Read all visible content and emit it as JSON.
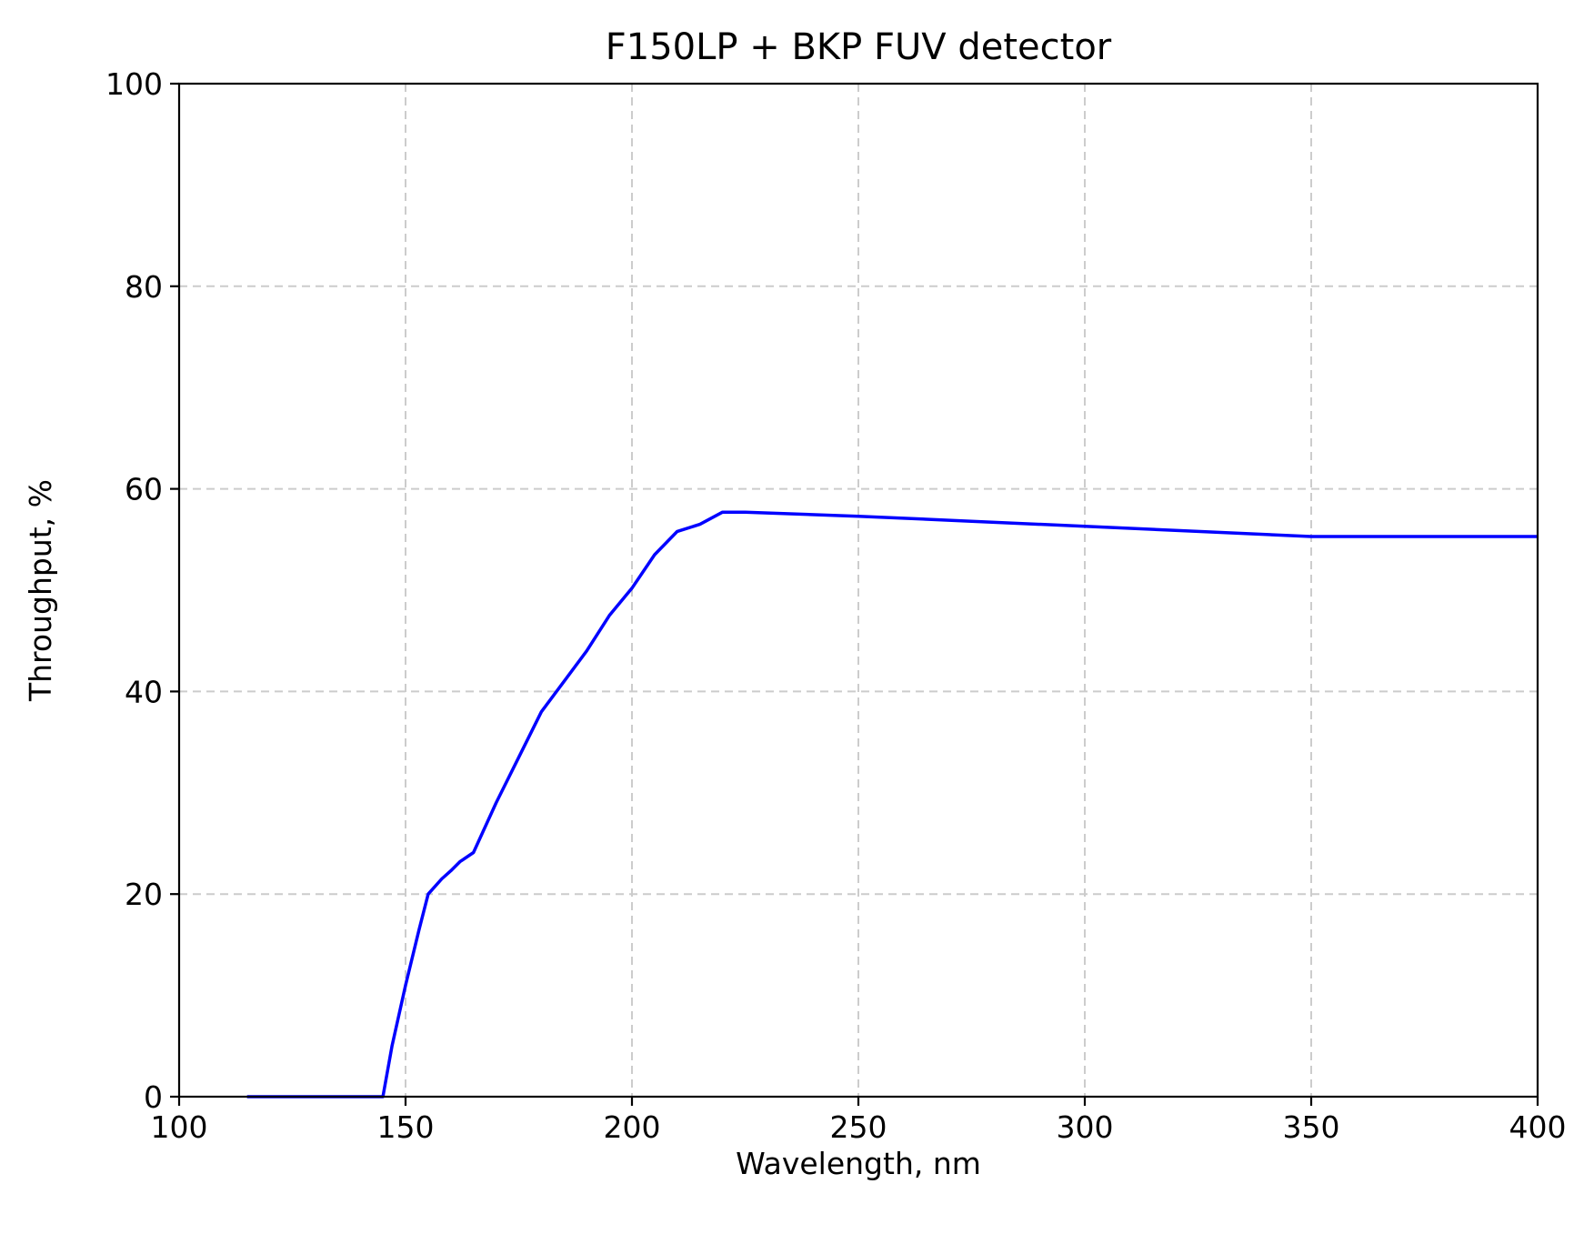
{
  "chart_data": {
    "type": "line",
    "title": "F150LP + BKP FUV detector",
    "xlabel": "Wavelength, nm",
    "ylabel": "Throughput, %",
    "xlim": [
      100,
      400
    ],
    "ylim": [
      0,
      100
    ],
    "xticks": [
      100,
      150,
      200,
      250,
      300,
      350,
      400
    ],
    "yticks": [
      0,
      20,
      40,
      60,
      80,
      100
    ],
    "grid": true,
    "series": [
      {
        "color": "#0000ff",
        "x": [
          115,
          145,
          147,
          150,
          153,
          155,
          158,
          160,
          162,
          165,
          170,
          175,
          180,
          185,
          190,
          195,
          200,
          205,
          210,
          215,
          220,
          225,
          250,
          275,
          300,
          325,
          350,
          375,
          400
        ],
        "y": [
          0,
          0,
          5,
          11,
          16.5,
          20,
          21.5,
          22.3,
          23.2,
          24.1,
          29,
          33.5,
          38,
          41,
          44,
          47.5,
          50.2,
          53.5,
          55.8,
          56.5,
          57.7,
          57.7,
          57.3,
          56.8,
          56.3,
          55.8,
          55.3,
          55.3,
          55.3
        ]
      }
    ]
  }
}
